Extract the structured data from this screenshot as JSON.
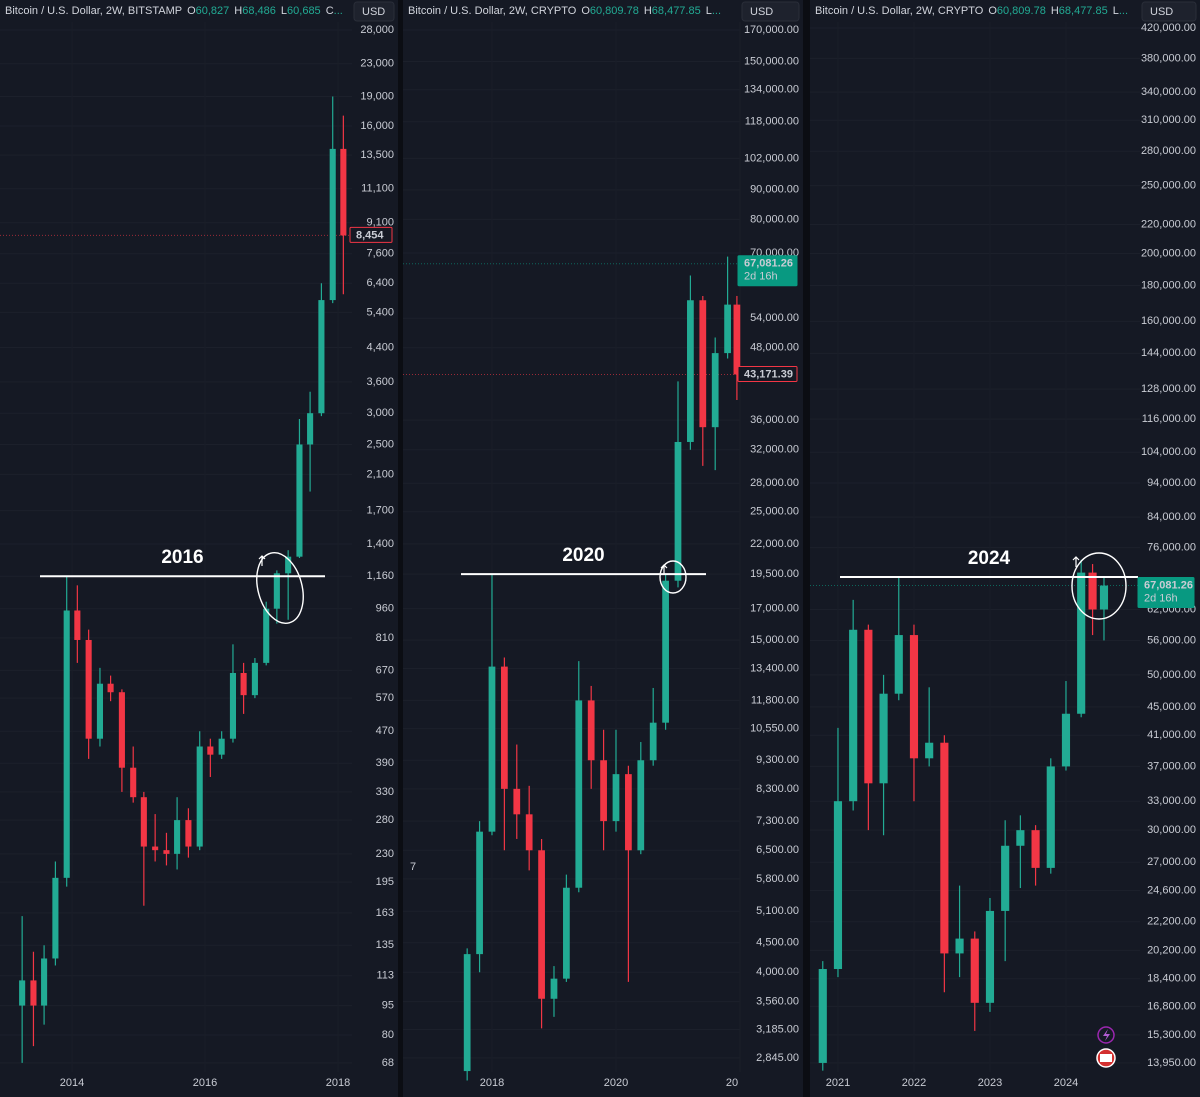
{
  "chart_data": [
    {
      "type": "candlestick",
      "title": "Bitcoin / U.S. Dollar, 2W, BITSTAMP",
      "ohlc_labels": [
        {
          "key": "O",
          "value": "60,827"
        },
        {
          "key": "H",
          "value": "68,486"
        },
        {
          "key": "L",
          "value": "60,685"
        },
        {
          "key": "C",
          "value": "..."
        }
      ],
      "currency": "USD",
      "log_scale": true,
      "grid": true,
      "up_color": "#22ab94",
      "down_color": "#f23645",
      "x": [
        2013.25,
        2013.42,
        2013.58,
        2013.75,
        2013.92,
        2014.08,
        2014.25,
        2014.42,
        2014.58,
        2014.75,
        2014.92,
        2015.08,
        2015.25,
        2015.42,
        2015.58,
        2015.75,
        2015.92,
        2016.08,
        2016.25,
        2016.42,
        2016.58,
        2016.75,
        2016.92,
        2017.08,
        2017.25,
        2017.42,
        2017.58,
        2017.75,
        2017.92,
        2018.08
      ],
      "open": [
        95,
        110,
        95,
        125,
        200,
        950,
        800,
        450,
        620,
        590,
        380,
        320,
        240,
        235,
        230,
        280,
        240,
        430,
        410,
        450,
        660,
        580,
        700,
        960,
        1180,
        1300,
        2500,
        3000,
        5800,
        14000
      ],
      "high": [
        160,
        130,
        135,
        220,
        1160,
        1100,
        850,
        680,
        650,
        600,
        430,
        330,
        290,
        260,
        320,
        300,
        470,
        450,
        470,
        780,
        700,
        720,
        1000,
        1200,
        1350,
        2900,
        3400,
        6400,
        19000,
        17000
      ],
      "low": [
        68,
        75,
        85,
        120,
        190,
        700,
        400,
        430,
        560,
        330,
        310,
        170,
        220,
        215,
        210,
        225,
        235,
        360,
        400,
        440,
        520,
        570,
        690,
        880,
        900,
        1290,
        1900,
        2950,
        5700,
        6000
      ],
      "close": [
        110,
        95,
        125,
        200,
        950,
        800,
        450,
        620,
        590,
        380,
        320,
        240,
        235,
        230,
        280,
        240,
        430,
        410,
        450,
        660,
        580,
        700,
        960,
        1180,
        1300,
        2500,
        3000,
        5800,
        14000,
        8454
      ],
      "xlim": [
        2012.917,
        2018.21
      ],
      "xticks": [
        2014,
        2016,
        2018
      ],
      "ylim": [
        64.5,
        29330
      ],
      "yticks": [
        {
          "value": 28000,
          "label": "28,000"
        },
        {
          "value": 23000,
          "label": "23,000"
        },
        {
          "value": 19000,
          "label": "19,000"
        },
        {
          "value": 16000,
          "label": "16,000"
        },
        {
          "value": 13500,
          "label": "13,500"
        },
        {
          "value": 11100,
          "label": "11,100"
        },
        {
          "value": 9100,
          "label": "9,100"
        },
        {
          "value": 7600,
          "label": "7,600"
        },
        {
          "value": 6400,
          "label": "6,400"
        },
        {
          "value": 5400,
          "label": "5,400"
        },
        {
          "value": 4400,
          "label": "4,400"
        },
        {
          "value": 3600,
          "label": "3,600"
        },
        {
          "value": 3000,
          "label": "3,000"
        },
        {
          "value": 2500,
          "label": "2,500"
        },
        {
          "value": 2100,
          "label": "2,100"
        },
        {
          "value": 1700,
          "label": "1,700"
        },
        {
          "value": 1400,
          "label": "1,400"
        },
        {
          "value": 1160,
          "label": "1,160"
        },
        960,
        810,
        670,
        570,
        470,
        390,
        330,
        280,
        230,
        195,
        163,
        135,
        113,
        95,
        80,
        68
      ],
      "level": {
        "label": "2016",
        "value": 1160
      },
      "price_labels": [
        {
          "value": 8454,
          "label": "8,454",
          "color": "#f23645",
          "style": "outline"
        }
      ]
    },
    {
      "type": "candlestick",
      "title": "Bitcoin / U.S. Dollar, 2W, CRYPTO",
      "ohlc_labels": [
        {
          "key": "O",
          "value": "60,809.78"
        },
        {
          "key": "H",
          "value": "68,477.85"
        },
        {
          "key": "L",
          "value": "..."
        }
      ],
      "currency": "USD",
      "log_scale": true,
      "grid": true,
      "up_color": "#22ab94",
      "down_color": "#f23645",
      "x": [
        2017.6,
        2017.8,
        2018.0,
        2018.2,
        2018.4,
        2018.6,
        2018.8,
        2019.0,
        2019.2,
        2019.4,
        2019.6,
        2019.8,
        2020.0,
        2020.2,
        2020.4,
        2020.6,
        2020.8,
        2021.0,
        2021.2,
        2021.4,
        2021.6,
        2021.8,
        2021.95
      ],
      "open": [
        2700,
        4300,
        7000,
        13500,
        8300,
        7500,
        6500,
        3600,
        3900,
        5600,
        11800,
        9300,
        7300,
        8800,
        6500,
        9300,
        10800,
        19000,
        33000,
        58000,
        35000,
        47000,
        57000
      ],
      "high": [
        4400,
        7300,
        19500,
        14000,
        9900,
        8400,
        6800,
        4100,
        5900,
        13800,
        12500,
        10500,
        10500,
        9100,
        10000,
        12400,
        19500,
        42000,
        64000,
        59000,
        50000,
        69000,
        59000
      ],
      "low": [
        2600,
        4000,
        6900,
        6500,
        6800,
        6000,
        3200,
        3350,
        3850,
        5500,
        8300,
        6500,
        7000,
        3850,
        6400,
        9100,
        10500,
        18500,
        32000,
        30000,
        29500,
        46000,
        39000
      ],
      "close": [
        4300,
        7000,
        13500,
        8300,
        7500,
        6500,
        3600,
        3900,
        5600,
        11800,
        9300,
        7300,
        8800,
        6500,
        9300,
        10800,
        19000,
        33000,
        58000,
        35000,
        47000,
        57000,
        43171.39
      ],
      "xlim": [
        2016.565,
        2022.0
      ],
      "xticks": [
        2018,
        2020,
        {
          "value": 2022,
          "label": "20"
        }
      ],
      "ylim": [
        2690,
        175500
      ],
      "yticks": [
        {
          "value": 170000,
          "label": "170,000.00"
        },
        {
          "value": 150000,
          "label": "150,000.00"
        },
        {
          "value": 134000,
          "label": "134,000.00"
        },
        {
          "value": 118000,
          "label": "118,000.00"
        },
        {
          "value": 102000,
          "label": "102,000.00"
        },
        {
          "value": 90000,
          "label": "90,000.00"
        },
        {
          "value": 80000,
          "label": "80,000.00"
        },
        {
          "value": 70000,
          "label": "70,000.00"
        },
        {
          "value": 54000,
          "label": "54,000.00"
        },
        {
          "value": 48000,
          "label": "48,000.00"
        },
        {
          "value": 36000,
          "label": "36,000.00"
        },
        {
          "value": 32000,
          "label": "32,000.00"
        },
        {
          "value": 28000,
          "label": "28,000.00"
        },
        {
          "value": 25000,
          "label": "25,000.00"
        },
        {
          "value": 22000,
          "label": "22,000.00"
        },
        {
          "value": 19500,
          "label": "19,500.00"
        },
        {
          "value": 17000,
          "label": "17,000.00"
        },
        {
          "value": 15000,
          "label": "15,000.00"
        },
        {
          "value": 13400,
          "label": "13,400.00"
        },
        {
          "value": 11800,
          "label": "11,800.00"
        },
        {
          "value": 10550,
          "label": "10,550.00"
        },
        {
          "value": 9300,
          "label": "9,300.00"
        },
        {
          "value": 8300,
          "label": "8,300.00"
        },
        {
          "value": 7300,
          "label": "7,300.00"
        },
        {
          "value": 6500,
          "label": "6,500.00"
        },
        {
          "value": 5800,
          "label": "5,800.00"
        },
        {
          "value": 5100,
          "label": "5,100.00"
        },
        {
          "value": 4500,
          "label": "4,500.00"
        },
        {
          "value": 4000,
          "label": "4,000.00"
        },
        {
          "value": 3560,
          "label": "3,560.00"
        },
        {
          "value": 3185,
          "label": "3,185.00"
        },
        {
          "value": 2845,
          "label": "2,845.00"
        }
      ],
      "level": {
        "label": "2020",
        "value": 19500
      },
      "note": "7",
      "price_labels": [
        {
          "value": 67081.26,
          "label": "67,081.26",
          "countdown": "2d 16h",
          "color": "#089981",
          "style": "fill"
        },
        {
          "value": 43171.39,
          "label": "43,171.39",
          "color": "#f23645",
          "style": "outline"
        }
      ]
    },
    {
      "type": "candlestick",
      "title": "Bitcoin / U.S. Dollar, 2W, CRYPTO",
      "ohlc_labels": [
        {
          "key": "O",
          "value": "60,809.78"
        },
        {
          "key": "H",
          "value": "68,477.85"
        },
        {
          "key": "L",
          "value": "..."
        }
      ],
      "currency": "USD",
      "log_scale": true,
      "grid": true,
      "up_color": "#22ab94",
      "down_color": "#f23645",
      "x": [
        2020.8,
        2021.0,
        2021.2,
        2021.4,
        2021.6,
        2021.8,
        2022.0,
        2022.2,
        2022.4,
        2022.6,
        2022.8,
        2023.0,
        2023.2,
        2023.4,
        2023.6,
        2023.8,
        2024.0,
        2024.2,
        2024.35,
        2024.5
      ],
      "open": [
        13950,
        19000,
        33000,
        58000,
        35000,
        47000,
        57000,
        38000,
        40000,
        20000,
        21000,
        17000,
        23000,
        28500,
        30000,
        26500,
        37000,
        44000,
        70000,
        62000
      ],
      "high": [
        19500,
        42000,
        64000,
        59000,
        50000,
        69000,
        59000,
        48000,
        41000,
        25000,
        21500,
        24000,
        31000,
        31500,
        30500,
        38000,
        49000,
        73000,
        72000,
        69000
      ],
      "low": [
        13600,
        18500,
        32000,
        30000,
        29500,
        46000,
        33000,
        37000,
        17600,
        18500,
        15500,
        16500,
        19500,
        24800,
        25000,
        26000,
        36500,
        43500,
        57000,
        56000
      ],
      "close": [
        19000,
        33000,
        58000,
        35000,
        47000,
        57000,
        38000,
        40000,
        20000,
        21000,
        17000,
        23000,
        28500,
        30000,
        26500,
        37000,
        44000,
        70000,
        62000,
        67081.26
      ],
      "xlim": [
        2020.632,
        2024.974
      ],
      "xticks": [
        2021,
        2022,
        2023,
        2024
      ],
      "ylim": [
        13540,
        428300
      ],
      "yticks": [
        {
          "value": 420000,
          "label": "420,000.00"
        },
        {
          "value": 380000,
          "label": "380,000.00"
        },
        {
          "value": 340000,
          "label": "340,000.00"
        },
        {
          "value": 310000,
          "label": "310,000.00"
        },
        {
          "value": 280000,
          "label": "280,000.00"
        },
        {
          "value": 250000,
          "label": "250,000.00"
        },
        {
          "value": 220000,
          "label": "220,000.00"
        },
        {
          "value": 200000,
          "label": "200,000.00"
        },
        {
          "value": 180000,
          "label": "180,000.00"
        },
        {
          "value": 160000,
          "label": "160,000.00"
        },
        {
          "value": 144000,
          "label": "144,000.00"
        },
        {
          "value": 128000,
          "label": "128,000.00"
        },
        {
          "value": 116000,
          "label": "116,000.00"
        },
        {
          "value": 104000,
          "label": "104,000.00"
        },
        {
          "value": 94000,
          "label": "94,000.00"
        },
        {
          "value": 84000,
          "label": "84,000.00"
        },
        {
          "value": 76000,
          "label": "76,000.00"
        },
        {
          "value": 62000,
          "label": "62,000.00"
        },
        {
          "value": 56000,
          "label": "56,000.00"
        },
        {
          "value": 50000,
          "label": "50,000.00"
        },
        {
          "value": 45000,
          "label": "45,000.00"
        },
        {
          "value": 41000,
          "label": "41,000.00"
        },
        {
          "value": 37000,
          "label": "37,000.00"
        },
        {
          "value": 33000,
          "label": "33,000.00"
        },
        {
          "value": 30000,
          "label": "30,000.00"
        },
        {
          "value": 27000,
          "label": "27,000.00"
        },
        {
          "value": 24600,
          "label": "24,600.00"
        },
        {
          "value": 22200,
          "label": "22,200.00"
        },
        {
          "value": 20200,
          "label": "20,200.00"
        },
        {
          "value": 18400,
          "label": "18,400.00"
        },
        {
          "value": 16800,
          "label": "16,800.00"
        },
        {
          "value": 15300,
          "label": "15,300.00"
        },
        {
          "value": 13950,
          "label": "13,950.00"
        }
      ],
      "level": {
        "label": "2024",
        "value": 69000
      },
      "price_labels": [
        {
          "value": 67081.26,
          "label": "67,081.26",
          "countdown": "2d 16h",
          "color": "#089981",
          "style": "fill"
        }
      ]
    }
  ]
}
